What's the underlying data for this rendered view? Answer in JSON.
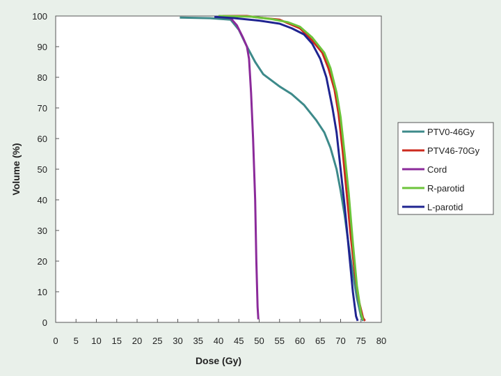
{
  "chart_data": {
    "type": "line",
    "xlabel": "Dose (Gy)",
    "ylabel": "Volume (%)",
    "xlim": [
      0,
      80
    ],
    "ylim": [
      0,
      100
    ],
    "xticks": [
      0,
      5,
      10,
      15,
      20,
      25,
      30,
      35,
      40,
      45,
      50,
      55,
      60,
      65,
      70,
      75,
      80
    ],
    "yticks": [
      0,
      10,
      20,
      30,
      40,
      50,
      60,
      70,
      80,
      90,
      100
    ],
    "grid": false,
    "legend_position": "right",
    "series": [
      {
        "name": "PTV0-46Gy",
        "color": "#3d8a8a",
        "points": [
          [
            30.5,
            99.5
          ],
          [
            38,
            99.3
          ],
          [
            43,
            98.8
          ],
          [
            45,
            95.5
          ],
          [
            47,
            90
          ],
          [
            49,
            85
          ],
          [
            50,
            83
          ],
          [
            51,
            81
          ],
          [
            53,
            79
          ],
          [
            55,
            77
          ],
          [
            58,
            74.5
          ],
          [
            61,
            71
          ],
          [
            64,
            66
          ],
          [
            66,
            62
          ],
          [
            67.5,
            57
          ],
          [
            69,
            50
          ],
          [
            70,
            43
          ],
          [
            71,
            35
          ],
          [
            72,
            25
          ],
          [
            73,
            16
          ],
          [
            74,
            8
          ],
          [
            75,
            2
          ],
          [
            75.5,
            0.5
          ]
        ]
      },
      {
        "name": "PTV46-70Gy",
        "color": "#cc2a1e",
        "points": [
          [
            41,
            100
          ],
          [
            47,
            100
          ],
          [
            50,
            99.5
          ],
          [
            55,
            98.8
          ],
          [
            60,
            96
          ],
          [
            63,
            92
          ],
          [
            65.5,
            88
          ],
          [
            67,
            83
          ],
          [
            68.5,
            76
          ],
          [
            69.5,
            68
          ],
          [
            70.5,
            56
          ],
          [
            71.5,
            42
          ],
          [
            72.5,
            28
          ],
          [
            73.5,
            16
          ],
          [
            74.5,
            7
          ],
          [
            75.5,
            1.5
          ],
          [
            76,
            0.5
          ]
        ]
      },
      {
        "name": "Cord",
        "color": "#8b2a9a",
        "points": [
          [
            40,
            99.8
          ],
          [
            43,
            99.3
          ],
          [
            44.5,
            97
          ],
          [
            46,
            93
          ],
          [
            47,
            90
          ],
          [
            47.5,
            86
          ],
          [
            48,
            75
          ],
          [
            48.5,
            60
          ],
          [
            49,
            40
          ],
          [
            49.3,
            20
          ],
          [
            49.6,
            5
          ],
          [
            49.8,
            1
          ]
        ]
      },
      {
        "name": "R-parotid",
        "color": "#6cc43a",
        "points": [
          [
            40,
            100
          ],
          [
            48,
            99.8
          ],
          [
            53,
            99
          ],
          [
            57,
            98
          ],
          [
            60,
            96.5
          ],
          [
            63,
            93
          ],
          [
            66,
            88
          ],
          [
            67.5,
            83
          ],
          [
            69,
            75
          ],
          [
            70,
            67
          ],
          [
            71,
            55
          ],
          [
            72,
            42
          ],
          [
            73,
            26
          ],
          [
            74,
            12
          ],
          [
            75,
            3
          ],
          [
            75.5,
            0.8
          ]
        ]
      },
      {
        "name": "L-parotid",
        "color": "#1f2490",
        "points": [
          [
            39,
            99.7
          ],
          [
            44,
            99.3
          ],
          [
            50,
            98.5
          ],
          [
            55,
            97.5
          ],
          [
            58,
            96
          ],
          [
            61,
            94
          ],
          [
            63,
            91
          ],
          [
            65,
            86
          ],
          [
            66.5,
            80
          ],
          [
            68,
            70
          ],
          [
            69,
            62
          ],
          [
            70,
            50
          ],
          [
            71,
            38
          ],
          [
            72,
            24
          ],
          [
            73,
            10
          ],
          [
            73.8,
            2
          ],
          [
            74.2,
            0.5
          ]
        ]
      }
    ]
  }
}
